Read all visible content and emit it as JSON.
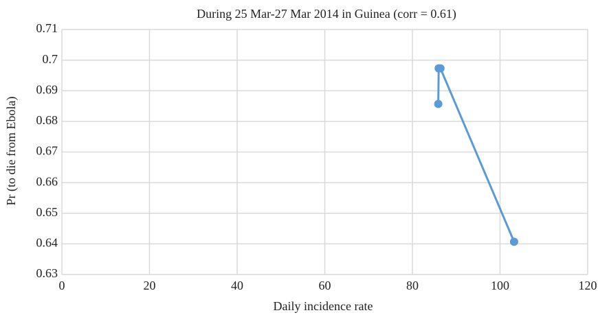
{
  "chart_data": {
    "type": "line",
    "title": "During 25 Mar-27 Mar 2014 in Guinea (corr = 0.61)",
    "x_label": "Daily incidence rate",
    "y_label": "Pr (to die from Ebola)",
    "x": [
      85.9,
      86.0,
      86.4,
      103.2
    ],
    "series": [
      {
        "name": "Pr",
        "color": "#5b9bd5",
        "values": [
          0.6857,
          0.6973,
          0.6973,
          0.6407
        ]
      }
    ],
    "xlim": [
      0,
      120
    ],
    "xticks": [
      0,
      20,
      40,
      60,
      80,
      100,
      120
    ],
    "ylim": [
      0.63,
      0.71
    ],
    "yticks": [
      0.63,
      0.64,
      0.65,
      0.66,
      0.67,
      0.68,
      0.69,
      0.7,
      0.71
    ],
    "grid": true
  }
}
